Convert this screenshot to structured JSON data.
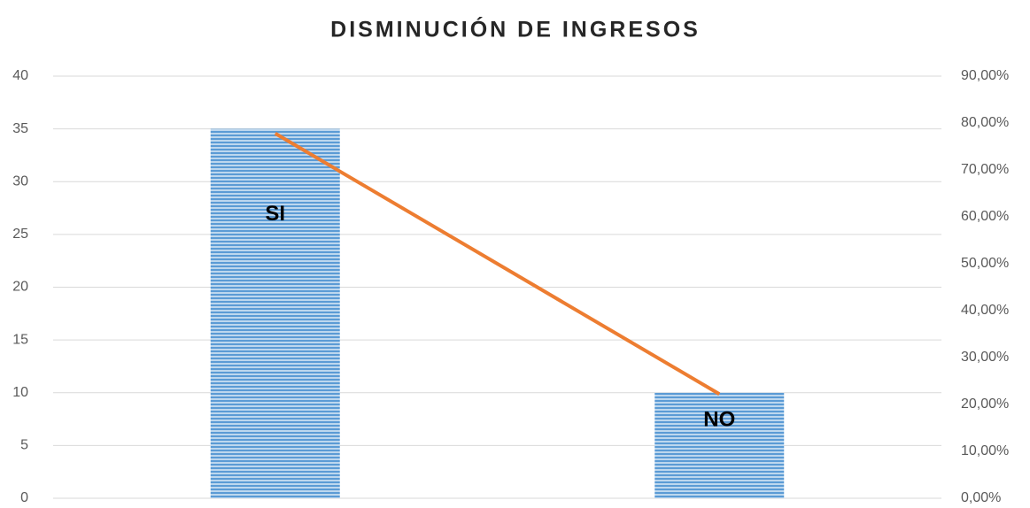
{
  "chart_data": {
    "type": "bar",
    "title": "DISMINUCIÓN DE INGRESOS",
    "categories": [
      "SI",
      "NO"
    ],
    "series": [
      {
        "type": "bar",
        "color": "#5b9bd5",
        "values": [
          35,
          10
        ]
      },
      {
        "type": "line",
        "color": "#ed7d31",
        "values": [
          77.78,
          22.22
        ],
        "axis": "y2"
      }
    ],
    "ylim": [
      0,
      40
    ],
    "yticks": [
      0,
      5,
      10,
      15,
      20,
      25,
      30,
      35,
      40
    ],
    "y2lim": [
      0,
      90
    ],
    "y2ticks": [
      {
        "value": 0,
        "label": "0,00%"
      },
      {
        "value": 10,
        "label": "10,00%"
      },
      {
        "value": 20,
        "label": "20,00%"
      },
      {
        "value": 30,
        "label": "30,00%"
      },
      {
        "value": 40,
        "label": "40,00%"
      },
      {
        "value": 50,
        "label": "50,00%"
      },
      {
        "value": 60,
        "label": "60,00%"
      },
      {
        "value": 70,
        "label": "70,00%"
      },
      {
        "value": 80,
        "label": "80,00%"
      },
      {
        "value": 90,
        "label": "90,00%"
      }
    ],
    "grid": true
  }
}
